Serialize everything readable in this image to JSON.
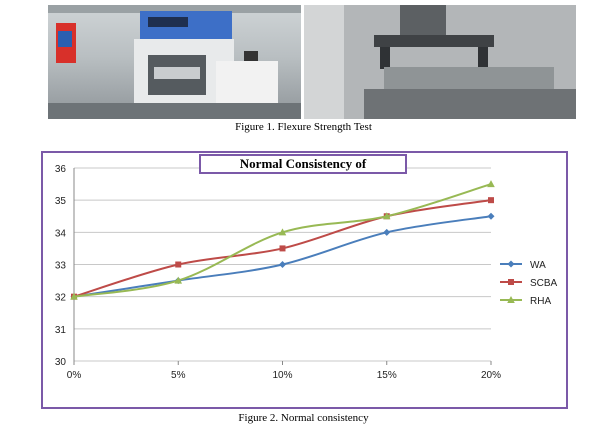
{
  "figure1": {
    "caption": "Figure 1. Flexure Strength Test"
  },
  "figure2": {
    "caption": "Figure 2. Normal consistency"
  },
  "chart_data": {
    "type": "line",
    "title": "Normal Consistency of",
    "xlabel": "",
    "ylabel": "",
    "categories": [
      "0%",
      "5%",
      "10%",
      "15%",
      "20%"
    ],
    "ylim": [
      30,
      36
    ],
    "yticks": [
      "30",
      "31",
      "32",
      "33",
      "34",
      "35",
      "36"
    ],
    "grid": true,
    "legend_position": "right",
    "series": [
      {
        "name": "WA",
        "color": "#4a7ebb",
        "marker": "diamond",
        "values": [
          32,
          32.5,
          33,
          34,
          34.5
        ]
      },
      {
        "name": "SCBA",
        "color": "#be4b48",
        "marker": "square",
        "values": [
          32,
          33,
          33.5,
          34.5,
          35
        ]
      },
      {
        "name": "RHA",
        "color": "#98b954",
        "marker": "triangle",
        "values": [
          32,
          32.5,
          34,
          34.5,
          35.5
        ]
      }
    ]
  }
}
